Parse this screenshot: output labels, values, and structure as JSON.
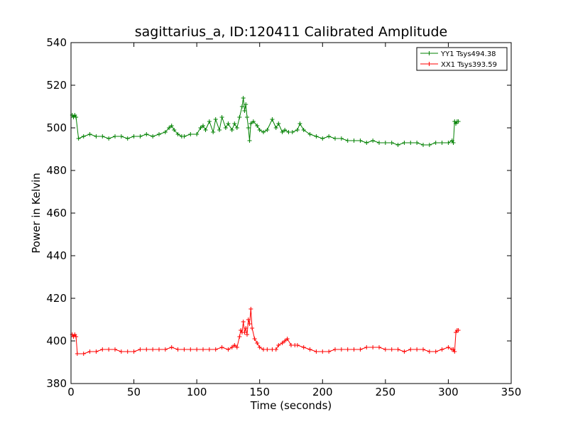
{
  "chart_data": {
    "type": "line",
    "title": "sagittarius_a, ID:120411 Calibrated Amplitude",
    "xlabel": "Time (seconds)",
    "ylabel": "Power in Kelvin",
    "xlim": [
      0,
      350
    ],
    "ylim": [
      380,
      540
    ],
    "xticks": [
      0,
      50,
      100,
      150,
      200,
      250,
      300,
      350
    ],
    "yticks": [
      380,
      400,
      420,
      440,
      460,
      480,
      500,
      520,
      540
    ],
    "grid": false,
    "legend_position": "top-right",
    "marker": "+",
    "series": [
      {
        "name": "YY1 Tsys494.38",
        "color": "#008000",
        "x": [
          1,
          2,
          3,
          4,
          6,
          10,
          15,
          20,
          25,
          30,
          35,
          40,
          45,
          50,
          55,
          60,
          65,
          70,
          75,
          78,
          80,
          82,
          85,
          88,
          90,
          95,
          100,
          103,
          105,
          107,
          110,
          113,
          115,
          118,
          120,
          123,
          125,
          128,
          130,
          132,
          134,
          136,
          137,
          138,
          139,
          140,
          141,
          142,
          143,
          145,
          148,
          150,
          153,
          156,
          160,
          163,
          165,
          168,
          170,
          173,
          176,
          180,
          182,
          185,
          190,
          195,
          200,
          205,
          210,
          215,
          220,
          225,
          230,
          235,
          240,
          245,
          250,
          255,
          260,
          265,
          270,
          275,
          280,
          285,
          290,
          295,
          300,
          303,
          304,
          305,
          306,
          307,
          308
        ],
        "y": [
          506,
          505,
          506,
          505,
          495,
          496,
          497,
          496,
          496,
          495,
          496,
          496,
          495,
          496,
          496,
          497,
          496,
          497,
          498,
          500,
          501,
          499,
          497,
          496,
          496,
          497,
          497,
          500,
          501,
          499,
          503,
          498,
          504,
          499,
          505,
          500,
          502,
          499,
          502,
          500,
          505,
          510,
          514,
          508,
          511,
          505,
          500,
          494,
          502,
          503,
          501,
          499,
          498,
          499,
          504,
          500,
          502,
          498,
          499,
          498,
          498,
          499,
          502,
          499,
          497,
          496,
          495,
          496,
          495,
          495,
          494,
          494,
          494,
          493,
          494,
          493,
          493,
          493,
          492,
          493,
          493,
          493,
          492,
          492,
          493,
          493,
          493,
          494,
          493,
          503,
          502,
          503,
          503
        ]
      },
      {
        "name": "XX1 Tsys393.59",
        "color": "#ff0000",
        "x": [
          1,
          2,
          3,
          4,
          5,
          10,
          15,
          20,
          25,
          30,
          35,
          40,
          45,
          50,
          55,
          60,
          65,
          70,
          75,
          80,
          85,
          90,
          95,
          100,
          105,
          110,
          115,
          120,
          125,
          128,
          130,
          132,
          134,
          135,
          136,
          137,
          138,
          139,
          140,
          141,
          142,
          143,
          144,
          146,
          148,
          150,
          153,
          156,
          160,
          163,
          165,
          168,
          170,
          172,
          175,
          178,
          180,
          185,
          190,
          195,
          200,
          205,
          210,
          215,
          220,
          225,
          230,
          235,
          240,
          245,
          250,
          255,
          260,
          265,
          270,
          275,
          280,
          285,
          290,
          295,
          300,
          303,
          304,
          305,
          306,
          307,
          308
        ],
        "y": [
          403,
          402,
          403,
          402,
          394,
          394,
          395,
          395,
          396,
          396,
          396,
          395,
          395,
          395,
          396,
          396,
          396,
          396,
          396,
          397,
          396,
          396,
          396,
          396,
          396,
          396,
          396,
          397,
          396,
          397,
          398,
          397,
          402,
          405,
          404,
          409,
          404,
          406,
          403,
          410,
          408,
          415,
          406,
          401,
          399,
          397,
          396,
          396,
          396,
          396,
          398,
          399,
          400,
          401,
          398,
          398,
          398,
          397,
          396,
          395,
          395,
          395,
          396,
          396,
          396,
          396,
          396,
          397,
          397,
          397,
          396,
          396,
          396,
          395,
          396,
          396,
          396,
          395,
          395,
          396,
          397,
          396,
          396,
          395,
          404,
          405,
          405
        ]
      }
    ]
  }
}
